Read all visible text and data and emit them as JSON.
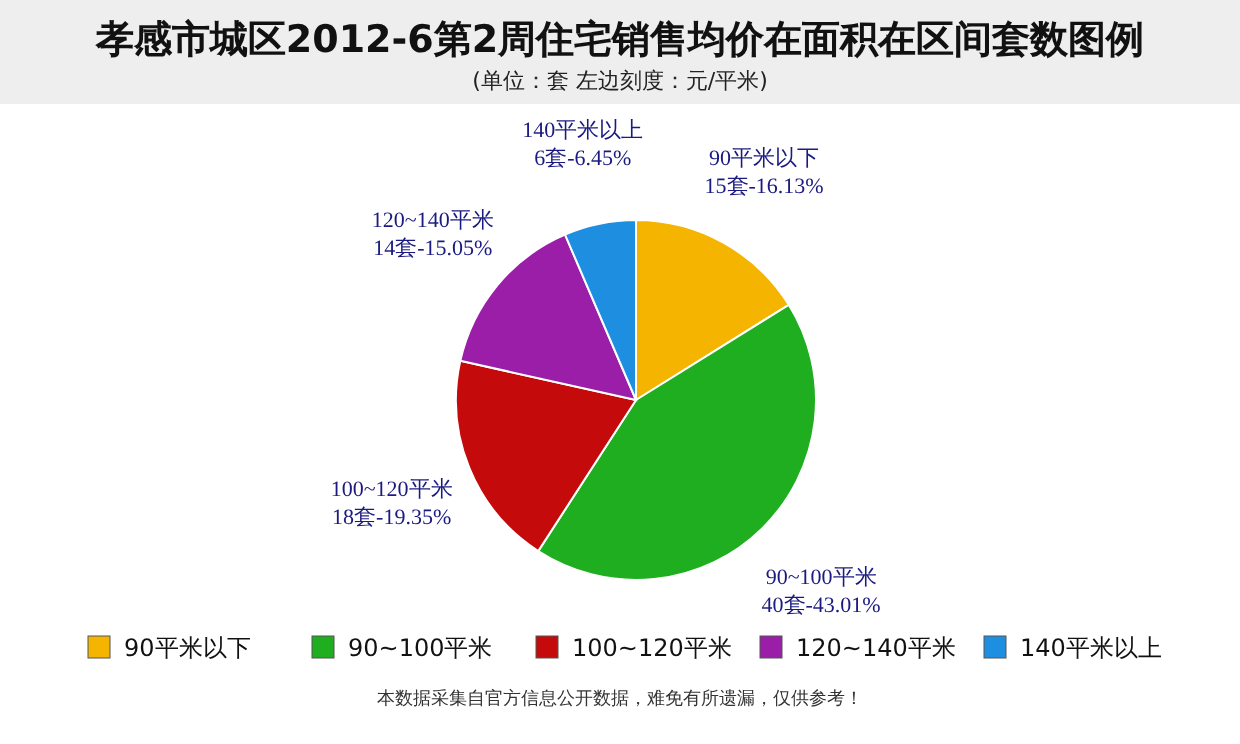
{
  "chart_data": {
    "type": "pie",
    "title": "孝感市城区2012-6第2周住宅销售均价在面积在区间套数图例",
    "subtitle": "(单位：套 左边刻度：元/平米)",
    "categories": [
      "90平米以下",
      "90~100平米",
      "100~120平米",
      "120~140平米",
      "140平米以上"
    ],
    "values": [
      15,
      40,
      18,
      14,
      6
    ],
    "value_labels": [
      "15套-16.13%",
      "40套-43.01%",
      "18套-19.35%",
      "14套-15.05%",
      "6套-6.45%"
    ],
    "colors": [
      "#f5b400",
      "#1fae1f",
      "#c40a0a",
      "#9a1ea8",
      "#1e8fe0"
    ],
    "legend": "bottom",
    "annotations": [
      "本数据采集自官方信息公开数据，难免有所遗漏，仅供参考！"
    ]
  }
}
